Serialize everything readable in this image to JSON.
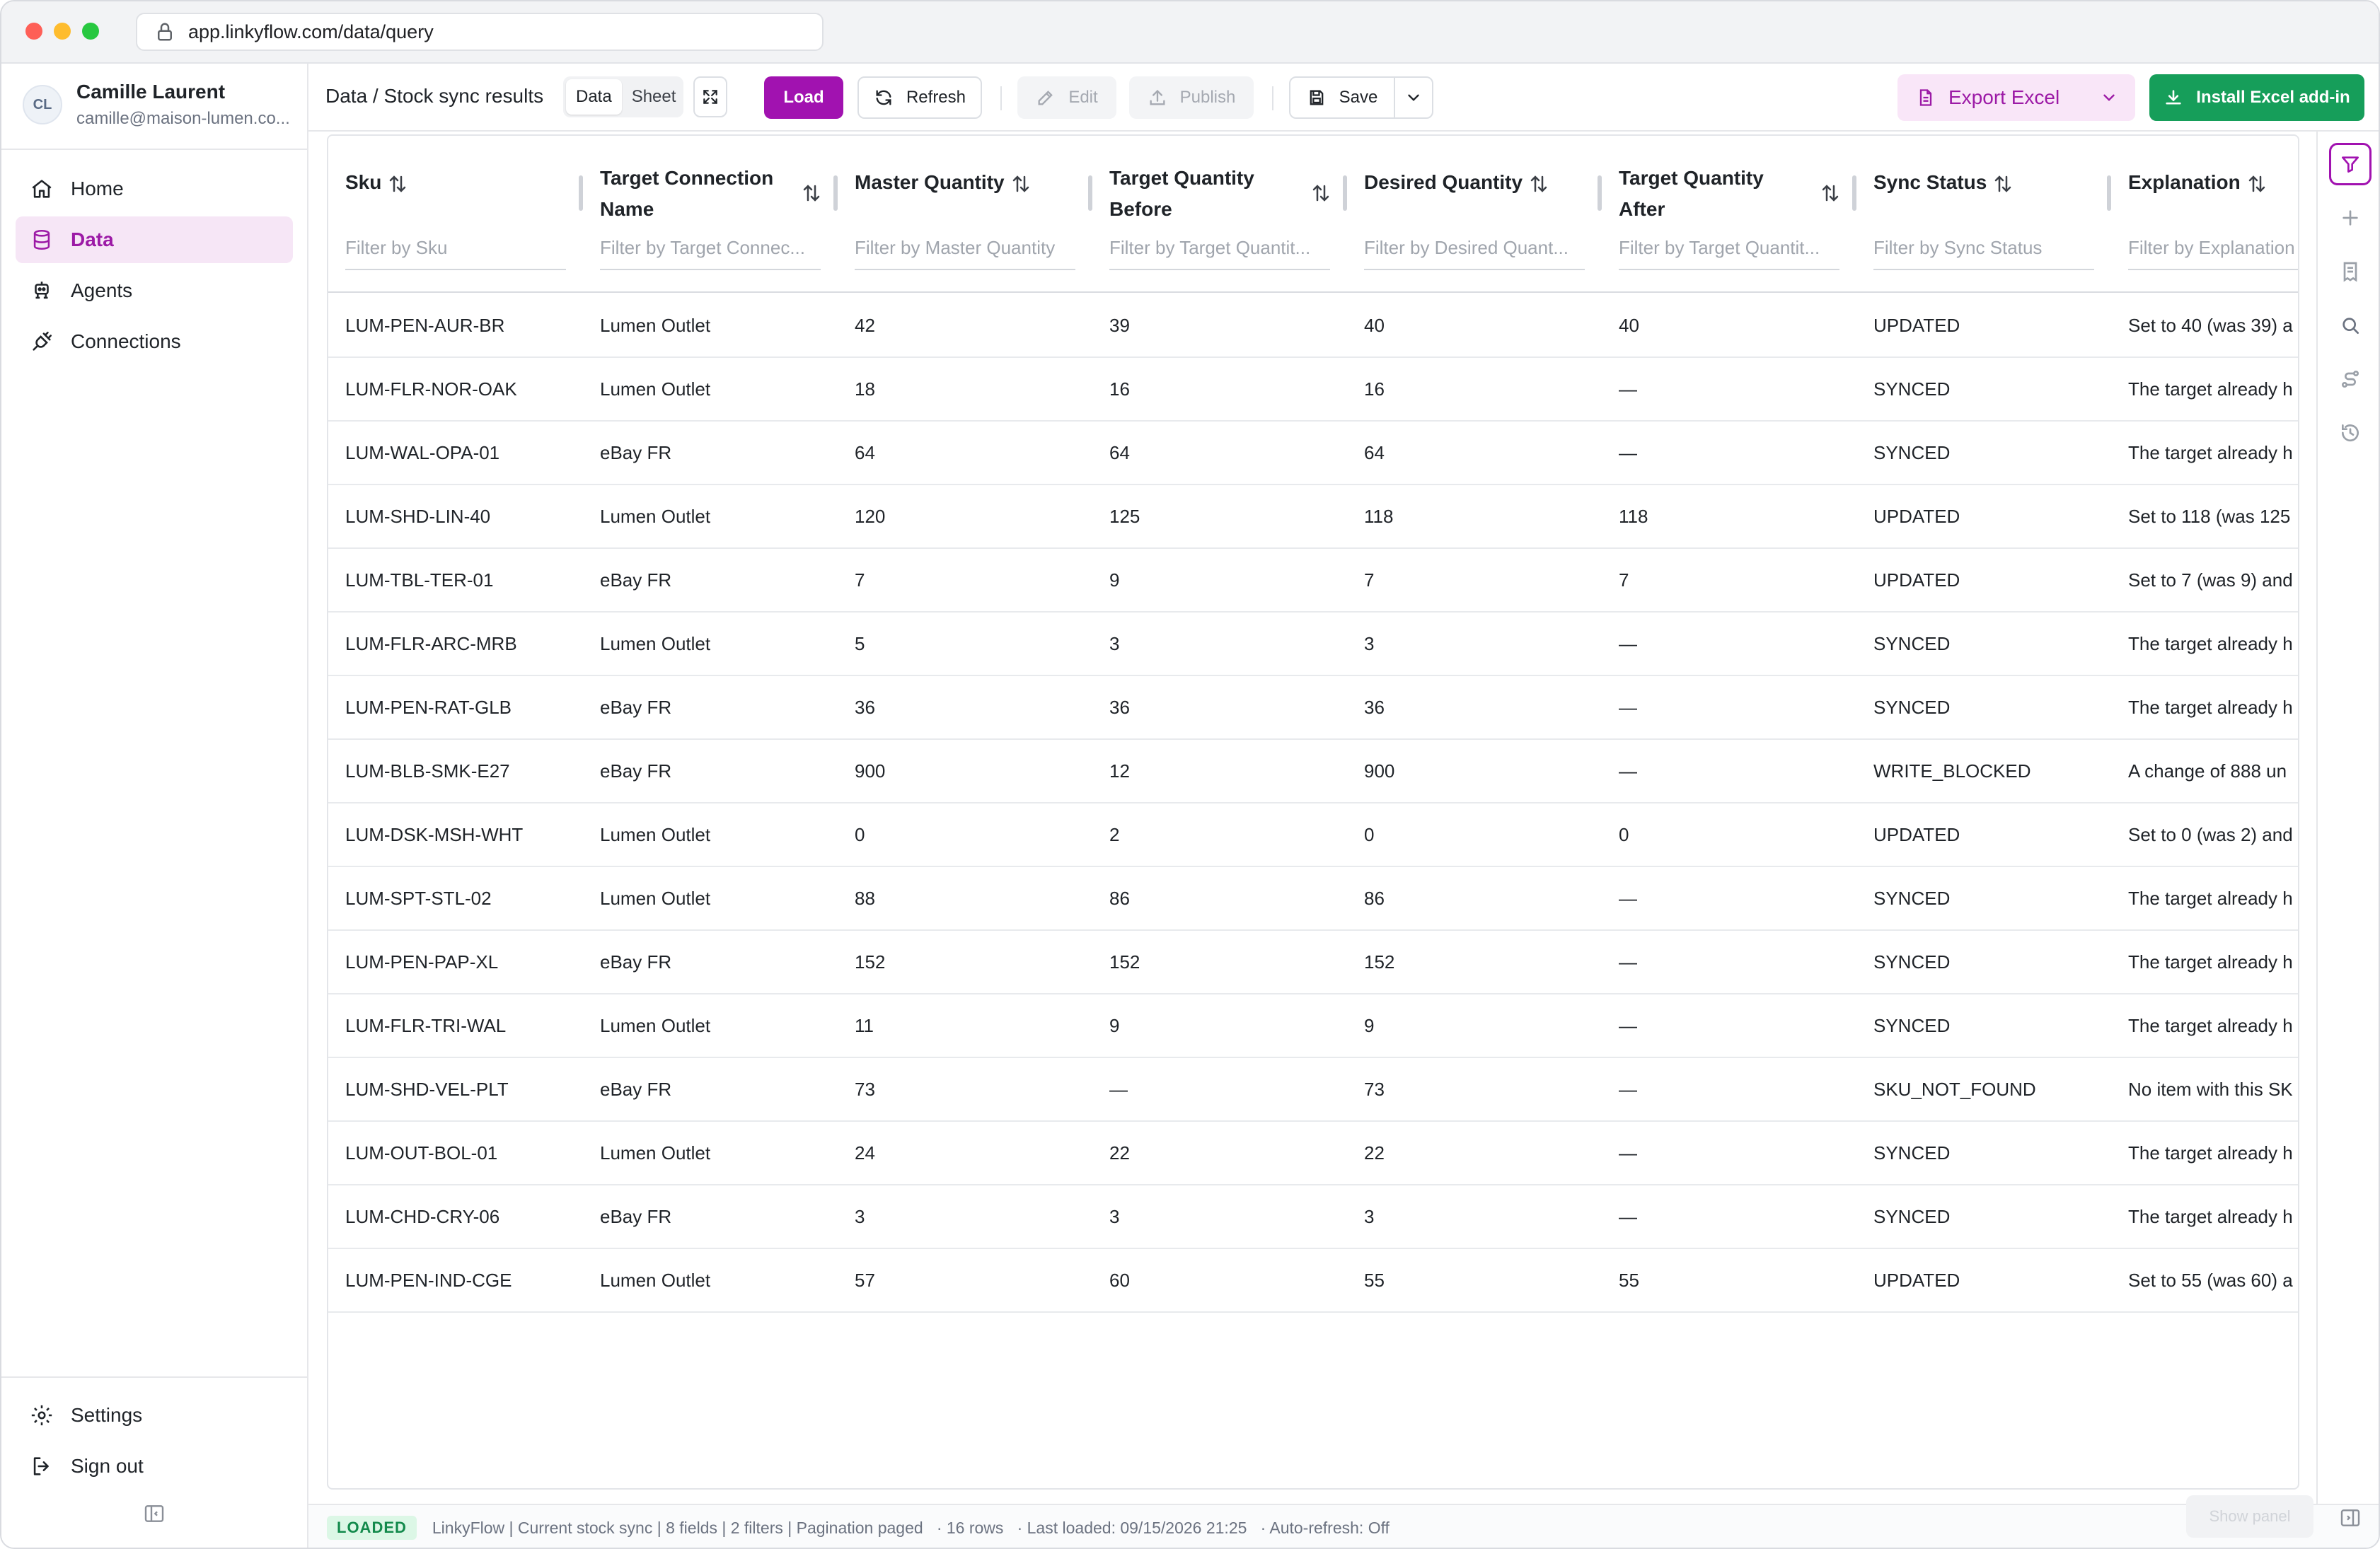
{
  "browser": {
    "url": "app.linkyflow.com/data/query"
  },
  "user": {
    "initials": "CL",
    "name": "Camille Laurent",
    "email": "camille@maison-lumen.co..."
  },
  "nav": {
    "items": [
      {
        "label": "Home",
        "icon": "home-icon"
      },
      {
        "label": "Data",
        "icon": "database-icon"
      },
      {
        "label": "Agents",
        "icon": "robot-icon"
      },
      {
        "label": "Connections",
        "icon": "plug-icon"
      }
    ],
    "bottom": [
      {
        "label": "Settings",
        "icon": "gear-icon"
      },
      {
        "label": "Sign out",
        "icon": "sign-out-icon"
      }
    ]
  },
  "toolbar": {
    "breadcrumb": "Data / Stock sync results",
    "view_data": "Data",
    "view_sheet": "Sheet",
    "load": "Load",
    "refresh": "Refresh",
    "edit": "Edit",
    "publish": "Publish",
    "save": "Save",
    "export_excel": "Export Excel",
    "install_addin": "Install Excel add-in"
  },
  "colors": {
    "accent": "#a112b0",
    "success": "#169e5a"
  },
  "table": {
    "columns": [
      {
        "title": "Sku",
        "filter": "Filter by Sku"
      },
      {
        "title": "Target Connection Name",
        "filter": "Filter by Target Connec..."
      },
      {
        "title": "Master Quantity",
        "filter": "Filter by Master Quantity"
      },
      {
        "title": "Target Quantity Before",
        "filter": "Filter by Target Quantit..."
      },
      {
        "title": "Desired Quantity",
        "filter": "Filter by Desired Quant..."
      },
      {
        "title": "Target Quantity After",
        "filter": "Filter by Target Quantit..."
      },
      {
        "title": "Sync Status",
        "filter": "Filter by Sync Status"
      },
      {
        "title": "Explanation",
        "filter": "Filter by Explanation"
      }
    ],
    "rows": [
      [
        "LUM-PEN-AUR-BR",
        "Lumen Outlet",
        "42",
        "39",
        "40",
        "40",
        "UPDATED",
        "Set to 40 (was 39) a"
      ],
      [
        "LUM-FLR-NOR-OAK",
        "Lumen Outlet",
        "18",
        "16",
        "16",
        "—",
        "SYNCED",
        "The target already h"
      ],
      [
        "LUM-WAL-OPA-01",
        "eBay FR",
        "64",
        "64",
        "64",
        "—",
        "SYNCED",
        "The target already h"
      ],
      [
        "LUM-SHD-LIN-40",
        "Lumen Outlet",
        "120",
        "125",
        "118",
        "118",
        "UPDATED",
        "Set to 118 (was 125"
      ],
      [
        "LUM-TBL-TER-01",
        "eBay FR",
        "7",
        "9",
        "7",
        "7",
        "UPDATED",
        "Set to 7 (was 9) and"
      ],
      [
        "LUM-FLR-ARC-MRB",
        "Lumen Outlet",
        "5",
        "3",
        "3",
        "—",
        "SYNCED",
        "The target already h"
      ],
      [
        "LUM-PEN-RAT-GLB",
        "eBay FR",
        "36",
        "36",
        "36",
        "—",
        "SYNCED",
        "The target already h"
      ],
      [
        "LUM-BLB-SMK-E27",
        "eBay FR",
        "900",
        "12",
        "900",
        "—",
        "WRITE_BLOCKED",
        "A change of 888 un"
      ],
      [
        "LUM-DSK-MSH-WHT",
        "Lumen Outlet",
        "0",
        "2",
        "0",
        "0",
        "UPDATED",
        "Set to 0 (was 2) and"
      ],
      [
        "LUM-SPT-STL-02",
        "Lumen Outlet",
        "88",
        "86",
        "86",
        "—",
        "SYNCED",
        "The target already h"
      ],
      [
        "LUM-PEN-PAP-XL",
        "eBay FR",
        "152",
        "152",
        "152",
        "—",
        "SYNCED",
        "The target already h"
      ],
      [
        "LUM-FLR-TRI-WAL",
        "Lumen Outlet",
        "11",
        "9",
        "9",
        "—",
        "SYNCED",
        "The target already h"
      ],
      [
        "LUM-SHD-VEL-PLT",
        "eBay FR",
        "73",
        "—",
        "73",
        "—",
        "SKU_NOT_FOUND",
        "No item with this SK"
      ],
      [
        "LUM-OUT-BOL-01",
        "Lumen Outlet",
        "24",
        "22",
        "22",
        "—",
        "SYNCED",
        "The target already h"
      ],
      [
        "LUM-CHD-CRY-06",
        "eBay FR",
        "3",
        "3",
        "3",
        "—",
        "SYNCED",
        "The target already h"
      ],
      [
        "LUM-PEN-IND-CGE",
        "Lumen Outlet",
        "57",
        "60",
        "55",
        "55",
        "UPDATED",
        "Set to 55 (was 60) a"
      ]
    ]
  },
  "status": {
    "badge": "LOADED",
    "text": "LinkyFlow | Current stock sync | 8 fields | 2 filters | Pagination paged   · 16 rows   · Last loaded: 09/15/2026 21:25   · Auto-refresh: Off",
    "show_panel": "Show panel"
  }
}
